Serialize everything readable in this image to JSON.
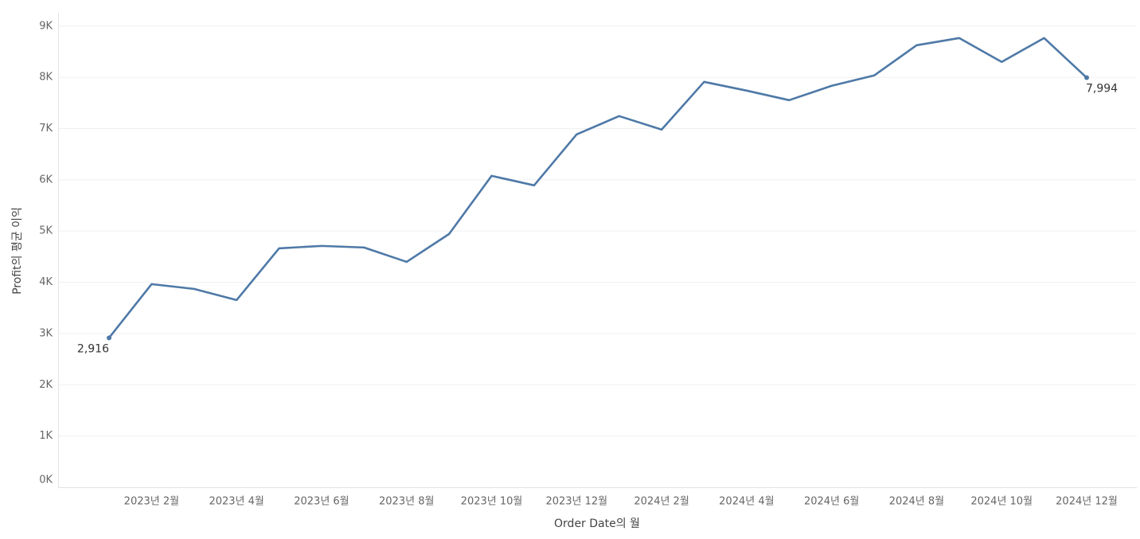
{
  "chart_data": {
    "type": "line",
    "x_label": "Order Date의 월",
    "y_label": "Profit의 평균 이익",
    "categories": [
      null,
      "2023년 2월",
      null,
      "2023년 4월",
      null,
      "2023년 6월",
      null,
      "2023년 8월",
      null,
      "2023년 10월",
      null,
      "2023년 12월",
      null,
      "2024년 2월",
      null,
      "2024년 4월",
      null,
      "2024년 6월",
      null,
      "2024년 8월",
      null,
      "2024년 10월",
      null,
      "2024년 12월"
    ],
    "series": [
      {
        "color": "#4e79a7",
        "values": [
          2916,
          3964,
          3871,
          3653,
          4663,
          4710,
          4679,
          4399,
          4943,
          6078,
          5892,
          6886,
          7244,
          6980,
          7912,
          7741,
          7555,
          7835,
          8037,
          8627,
          8767,
          8301,
          8767,
          7994
        ],
        "value_labels": [
          "2,916",
          null,
          null,
          null,
          null,
          null,
          null,
          null,
          null,
          null,
          null,
          null,
          null,
          null,
          null,
          null,
          null,
          null,
          null,
          null,
          null,
          null,
          null,
          "7,994"
        ]
      }
    ],
    "ylim": [
      0,
      9230
    ],
    "yticks": [
      {
        "value": 0,
        "label": "0K"
      },
      {
        "value": 1000,
        "label": "1K"
      },
      {
        "value": 2000,
        "label": "2K"
      },
      {
        "value": 3000,
        "label": "3K"
      },
      {
        "value": 4000,
        "label": "4K"
      },
      {
        "value": 5000,
        "label": "5K"
      },
      {
        "value": 6000,
        "label": "6K"
      },
      {
        "value": 7000,
        "label": "7K"
      },
      {
        "value": 8000,
        "label": "8K"
      },
      {
        "value": 9000,
        "label": "9K"
      }
    ],
    "grid": true
  }
}
